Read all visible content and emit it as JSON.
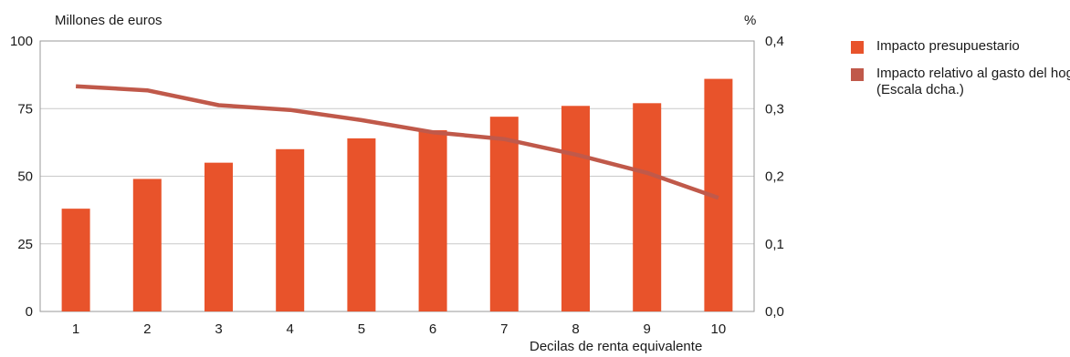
{
  "chart_data": {
    "type": "bar",
    "ylabel_left": "Millones de euros",
    "ylabel_right": "%",
    "xlabel": "Decilas de renta equivalente",
    "categories": [
      "1",
      "2",
      "3",
      "4",
      "5",
      "6",
      "7",
      "8",
      "9",
      "10"
    ],
    "ylim_left": [
      0,
      100
    ],
    "yticks_left": [
      "0",
      "25",
      "50",
      "75",
      "100"
    ],
    "ylim_right": [
      0,
      0.4
    ],
    "yticks_right": [
      "0,0",
      "0,1",
      "0,2",
      "0,3",
      "0,4"
    ],
    "grid": true,
    "legend_position": "right",
    "series": [
      {
        "name": "Impacto presupuestario",
        "type": "bar",
        "axis": "left",
        "color": "#e8532b",
        "values": [
          38,
          49,
          55,
          60,
          64,
          67,
          72,
          76,
          77,
          86
        ]
      },
      {
        "name": "Impacto relativo al gasto del hogar (Escala dcha.)",
        "type": "line",
        "axis": "right",
        "color": "#c0594a",
        "values": [
          0.333,
          0.327,
          0.305,
          0.298,
          0.283,
          0.265,
          0.255,
          0.232,
          0.205,
          0.168
        ]
      }
    ]
  },
  "legend": {
    "items": [
      {
        "label": "Impacto presupuestario",
        "color": "#e8532b"
      },
      {
        "label": "Impacto relativo al gasto del hogar (Escala dcha.)",
        "color": "#c0594a"
      }
    ]
  }
}
